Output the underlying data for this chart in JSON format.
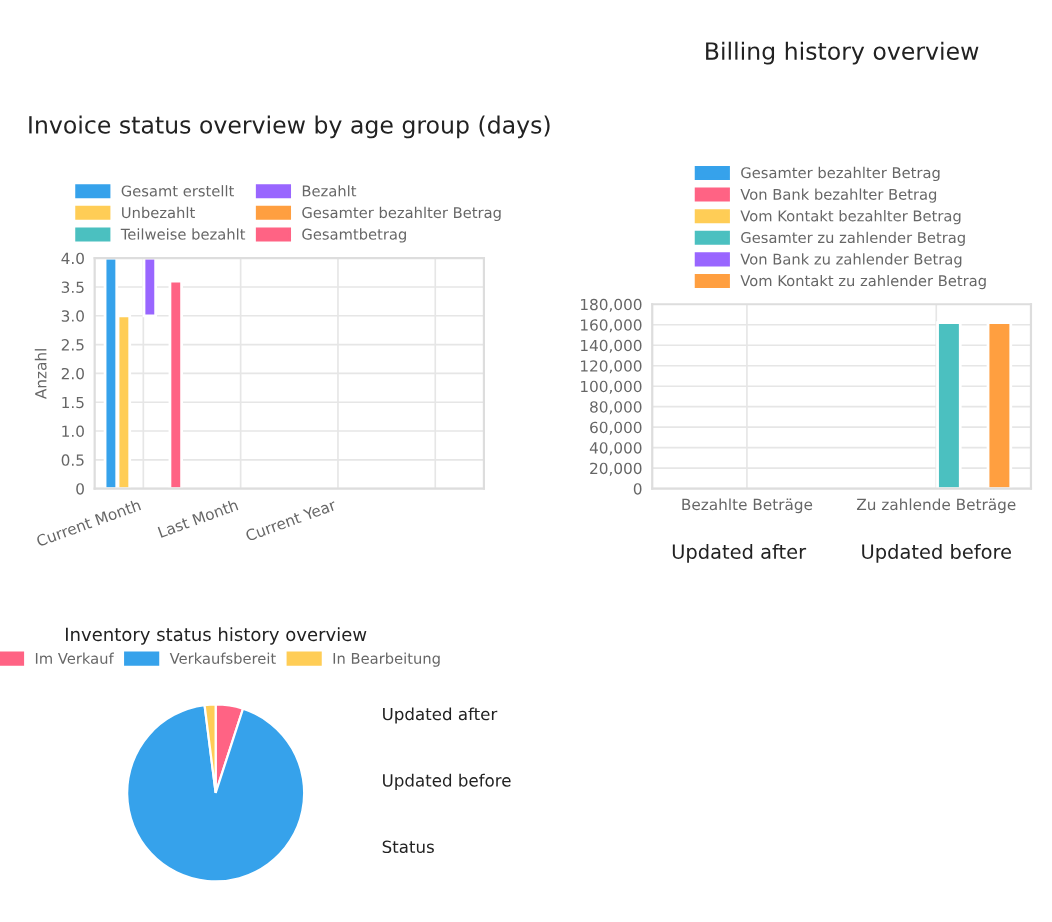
{
  "chart_data": [
    {
      "type": "bar",
      "title": "Invoice status overview by age group (days)",
      "ylabel": "Anzahl",
      "categories": [
        "Current Month",
        "Last Month",
        "Current Year",
        null
      ],
      "ylim": [
        0,
        4
      ],
      "yticks": [
        {
          "value": 0,
          "label": "0"
        },
        0.5,
        {
          "value": 1,
          "label": "1.0"
        },
        1.5,
        {
          "value": 2,
          "label": "2.0"
        },
        2.5,
        {
          "value": 3,
          "label": "3.0"
        },
        3.5,
        {
          "value": 4,
          "label": "4.0"
        }
      ],
      "grid": true,
      "legend": "top",
      "series": [
        {
          "name": "Gesamt erstellt",
          "color": "#36a2eb",
          "values": [
            4,
            null,
            null,
            null
          ]
        },
        {
          "name": "Unbezahlt",
          "color": "#ffcd56",
          "values": [
            3,
            null,
            null,
            null
          ]
        },
        {
          "name": "Teilweise bezahlt",
          "color": "#4bc0c0",
          "values": [
            null,
            null,
            null,
            null
          ]
        },
        {
          "name": "Bezahlt",
          "color": "#9966ff",
          "values": [
            1,
            null,
            null,
            null
          ],
          "base": [
            3,
            null,
            null,
            null
          ]
        },
        {
          "name": "Gesamter bezahlter Betrag",
          "color": "#ff9f40",
          "values": [
            null,
            null,
            null,
            null
          ]
        },
        {
          "name": "Gesamtbetrag",
          "color": "#ff6384",
          "values": [
            3.6,
            null,
            null,
            null
          ]
        }
      ]
    },
    {
      "type": "bar",
      "title": "Billing history overview",
      "categories": [
        "Bezahlte Beträge",
        "Zu zahlende Beträge"
      ],
      "ylim": [
        0,
        180000
      ],
      "yticks": [
        {
          "value": 0,
          "label": "0"
        },
        {
          "value": 20000,
          "label": "20,000"
        },
        {
          "value": 40000,
          "label": "40,000"
        },
        {
          "value": 60000,
          "label": "60,000"
        },
        {
          "value": 80000,
          "label": "80,000"
        },
        {
          "value": 100000,
          "label": "100,000"
        },
        {
          "value": 120000,
          "label": "120,000"
        },
        {
          "value": 140000,
          "label": "140,000"
        },
        {
          "value": 160000,
          "label": "160,000"
        },
        {
          "value": 180000,
          "label": "180,000"
        }
      ],
      "grid": true,
      "legend": "top",
      "annotations": [
        "Updated after",
        "Updated before"
      ],
      "series": [
        {
          "name": "Gesamter bezahlter Betrag",
          "color": "#36a2eb",
          "values": [
            null,
            null
          ]
        },
        {
          "name": "Von Bank bezahlter Betrag",
          "color": "#ff6384",
          "values": [
            null,
            null
          ]
        },
        {
          "name": "Vom Kontakt bezahlter Betrag",
          "color": "#ffcd56",
          "values": [
            null,
            null
          ]
        },
        {
          "name": "Gesamter zu zahlender Betrag",
          "color": "#4bc0c0",
          "values": [
            null,
            162000
          ]
        },
        {
          "name": "Von Bank zu zahlender Betrag",
          "color": "#9966ff",
          "values": [
            null,
            null
          ]
        },
        {
          "name": "Vom Kontakt zu zahlender Betrag",
          "color": "#ff9f40",
          "values": [
            null,
            162000
          ]
        }
      ]
    },
    {
      "type": "pie",
      "title": "Inventory status history overview",
      "legend": "top",
      "categories": [
        "Im Verkauf",
        "Verkaufsbereit",
        "In Bearbeitung"
      ],
      "values": [
        5,
        93,
        2
      ],
      "colors": [
        "#ff6384",
        "#36a2eb",
        "#ffcd56"
      ],
      "annotations": [
        "Updated after",
        "Updated before",
        "Status"
      ]
    }
  ]
}
